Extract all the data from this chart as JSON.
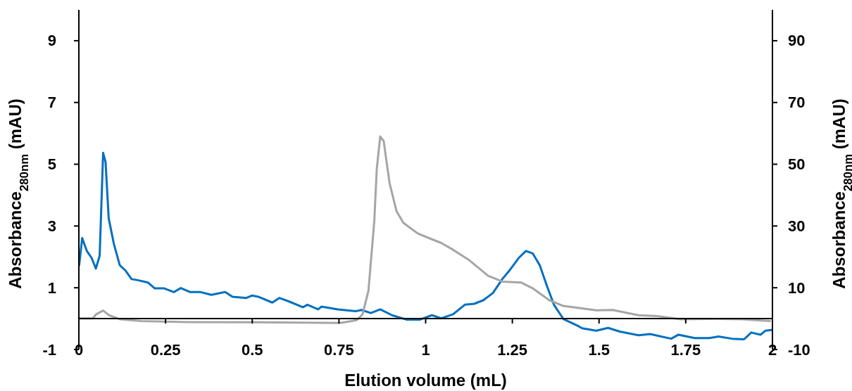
{
  "chart_data": {
    "type": "line",
    "xlabel": "Elution volume (mL)",
    "ylabel": "Absorbance$_{280nm}$ (mAU)",
    "y2label": "Absorbance$_{280nm}$ (mAU)",
    "xlim": [
      0,
      2
    ],
    "xticks": [
      0,
      0.25,
      0.5,
      0.75,
      1,
      1.25,
      1.5,
      1.75,
      2
    ],
    "ylim": [
      -1,
      10
    ],
    "yticks": [
      -1,
      1,
      3,
      5,
      7,
      9
    ],
    "y2lim": [
      -10,
      100
    ],
    "y2ticks": [
      -10,
      10,
      30,
      50,
      70,
      90
    ],
    "grid": false,
    "line_style": "solid",
    "series": [
      {
        "color": "#0070c0",
        "x": [
          0.001,
          0.0095,
          0.023,
          0.037,
          0.049,
          0.06,
          0.07,
          0.077,
          0.086,
          0.101,
          0.118,
          0.135,
          0.152,
          0.172,
          0.199,
          0.219,
          0.246,
          0.274,
          0.294,
          0.321,
          0.351,
          0.382,
          0.422,
          0.443,
          0.483,
          0.5,
          0.517,
          0.558,
          0.578,
          0.605,
          0.646,
          0.659,
          0.69,
          0.7,
          0.747,
          0.798,
          0.815,
          0.842,
          0.869,
          0.903,
          0.944,
          0.984,
          1.018,
          1.045,
          1.079,
          1.113,
          1.14,
          1.167,
          1.194,
          1.221,
          1.241,
          1.268,
          1.289,
          1.309,
          1.329,
          1.35,
          1.37,
          1.397,
          1.438,
          1.451,
          1.492,
          1.526,
          1.56,
          1.614,
          1.647,
          1.708,
          1.729,
          1.776,
          1.817,
          1.844,
          1.884,
          1.918,
          1.939,
          1.966,
          1.98,
          1.997
        ],
        "values": [
          1.73,
          2.61,
          2.19,
          1.96,
          1.62,
          2.04,
          5.37,
          5.07,
          3.25,
          2.42,
          1.73,
          1.55,
          1.28,
          1.24,
          1.17,
          0.98,
          0.98,
          0.86,
          0.99,
          0.86,
          0.86,
          0.77,
          0.86,
          0.71,
          0.67,
          0.75,
          0.71,
          0.52,
          0.67,
          0.56,
          0.37,
          0.45,
          0.3,
          0.39,
          0.3,
          0.24,
          0.28,
          0.18,
          0.3,
          0.11,
          -0.03,
          -0.03,
          0.11,
          0.01,
          0.14,
          0.45,
          0.48,
          0.6,
          0.83,
          1.28,
          1.55,
          1.96,
          2.19,
          2.11,
          1.73,
          1.05,
          0.45,
          -0.01,
          -0.23,
          -0.31,
          -0.39,
          -0.3,
          -0.42,
          -0.54,
          -0.5,
          -0.65,
          -0.52,
          -0.63,
          -0.63,
          -0.58,
          -0.65,
          -0.67,
          -0.45,
          -0.52,
          -0.39,
          -0.37
        ]
      },
      {
        "color": "#a5a5a5",
        "axis": "y2",
        "x": [
          0,
          0.04,
          0.05,
          0.07,
          0.087,
          0.118,
          0.179,
          0.314,
          0.517,
          0.754,
          0.801,
          0.818,
          0.835,
          0.852,
          0.859,
          0.869,
          0.879,
          0.896,
          0.916,
          0.936,
          0.977,
          1.018,
          1.045,
          1.079,
          1.126,
          1.18,
          1.221,
          1.275,
          1.309,
          1.356,
          1.397,
          1.424,
          1.492,
          1.539,
          1.614,
          1.668,
          1.735,
          1.83,
          1.911,
          1.993
        ],
        "values": [
          0.1,
          0.1,
          1.4,
          2.6,
          1.1,
          -0.2,
          -0.8,
          -1.1,
          -1.2,
          -1.4,
          -0.5,
          1.4,
          9,
          31.7,
          48.4,
          59,
          57.5,
          43.9,
          34.8,
          31,
          27.6,
          25.7,
          24.5,
          22.3,
          18.9,
          13.9,
          12,
          11.7,
          9.8,
          6,
          4.1,
          3.7,
          2.7,
          2.8,
          1.1,
          0.8,
          -0.2,
          -0.1,
          -0.2,
          -0.8
        ]
      }
    ]
  }
}
